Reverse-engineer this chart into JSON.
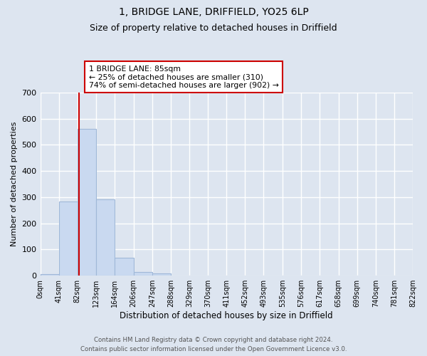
{
  "title": "1, BRIDGE LANE, DRIFFIELD, YO25 6LP",
  "subtitle": "Size of property relative to detached houses in Driffield",
  "xlabel": "Distribution of detached houses by size in Driffield",
  "ylabel": "Number of detached properties",
  "bar_values": [
    7,
    283,
    560,
    293,
    68,
    15,
    10,
    0,
    0,
    0,
    0,
    0,
    0,
    0,
    0,
    0,
    0,
    0,
    0,
    0
  ],
  "bin_edges": [
    0,
    41,
    82,
    123,
    164,
    206,
    247,
    288,
    329,
    370,
    411,
    452,
    493,
    535,
    576,
    617,
    658,
    699,
    740,
    781,
    822
  ],
  "tick_labels": [
    "0sqm",
    "41sqm",
    "82sqm",
    "123sqm",
    "164sqm",
    "206sqm",
    "247sqm",
    "288sqm",
    "329sqm",
    "370sqm",
    "411sqm",
    "452sqm",
    "493sqm",
    "535sqm",
    "576sqm",
    "617sqm",
    "658sqm",
    "699sqm",
    "740sqm",
    "781sqm",
    "822sqm"
  ],
  "bar_color": "#c9d9f0",
  "bar_edge_color": "#a0b8d8",
  "property_line_x": 85,
  "property_line_color": "#cc0000",
  "ylim": [
    0,
    700
  ],
  "yticks": [
    0,
    100,
    200,
    300,
    400,
    500,
    600,
    700
  ],
  "annotation_box_text": "1 BRIDGE LANE: 85sqm\n← 25% of detached houses are smaller (310)\n74% of semi-detached houses are larger (902) →",
  "annotation_box_color": "#cc0000",
  "annotation_box_facecolor": "white",
  "footer_line1": "Contains HM Land Registry data © Crown copyright and database right 2024.",
  "footer_line2": "Contains public sector information licensed under the Open Government Licence v3.0.",
  "bg_color": "#dde5f0",
  "plot_bg_color": "#dde5f0",
  "grid_color": "white",
  "title_fontsize": 10,
  "subtitle_fontsize": 9
}
